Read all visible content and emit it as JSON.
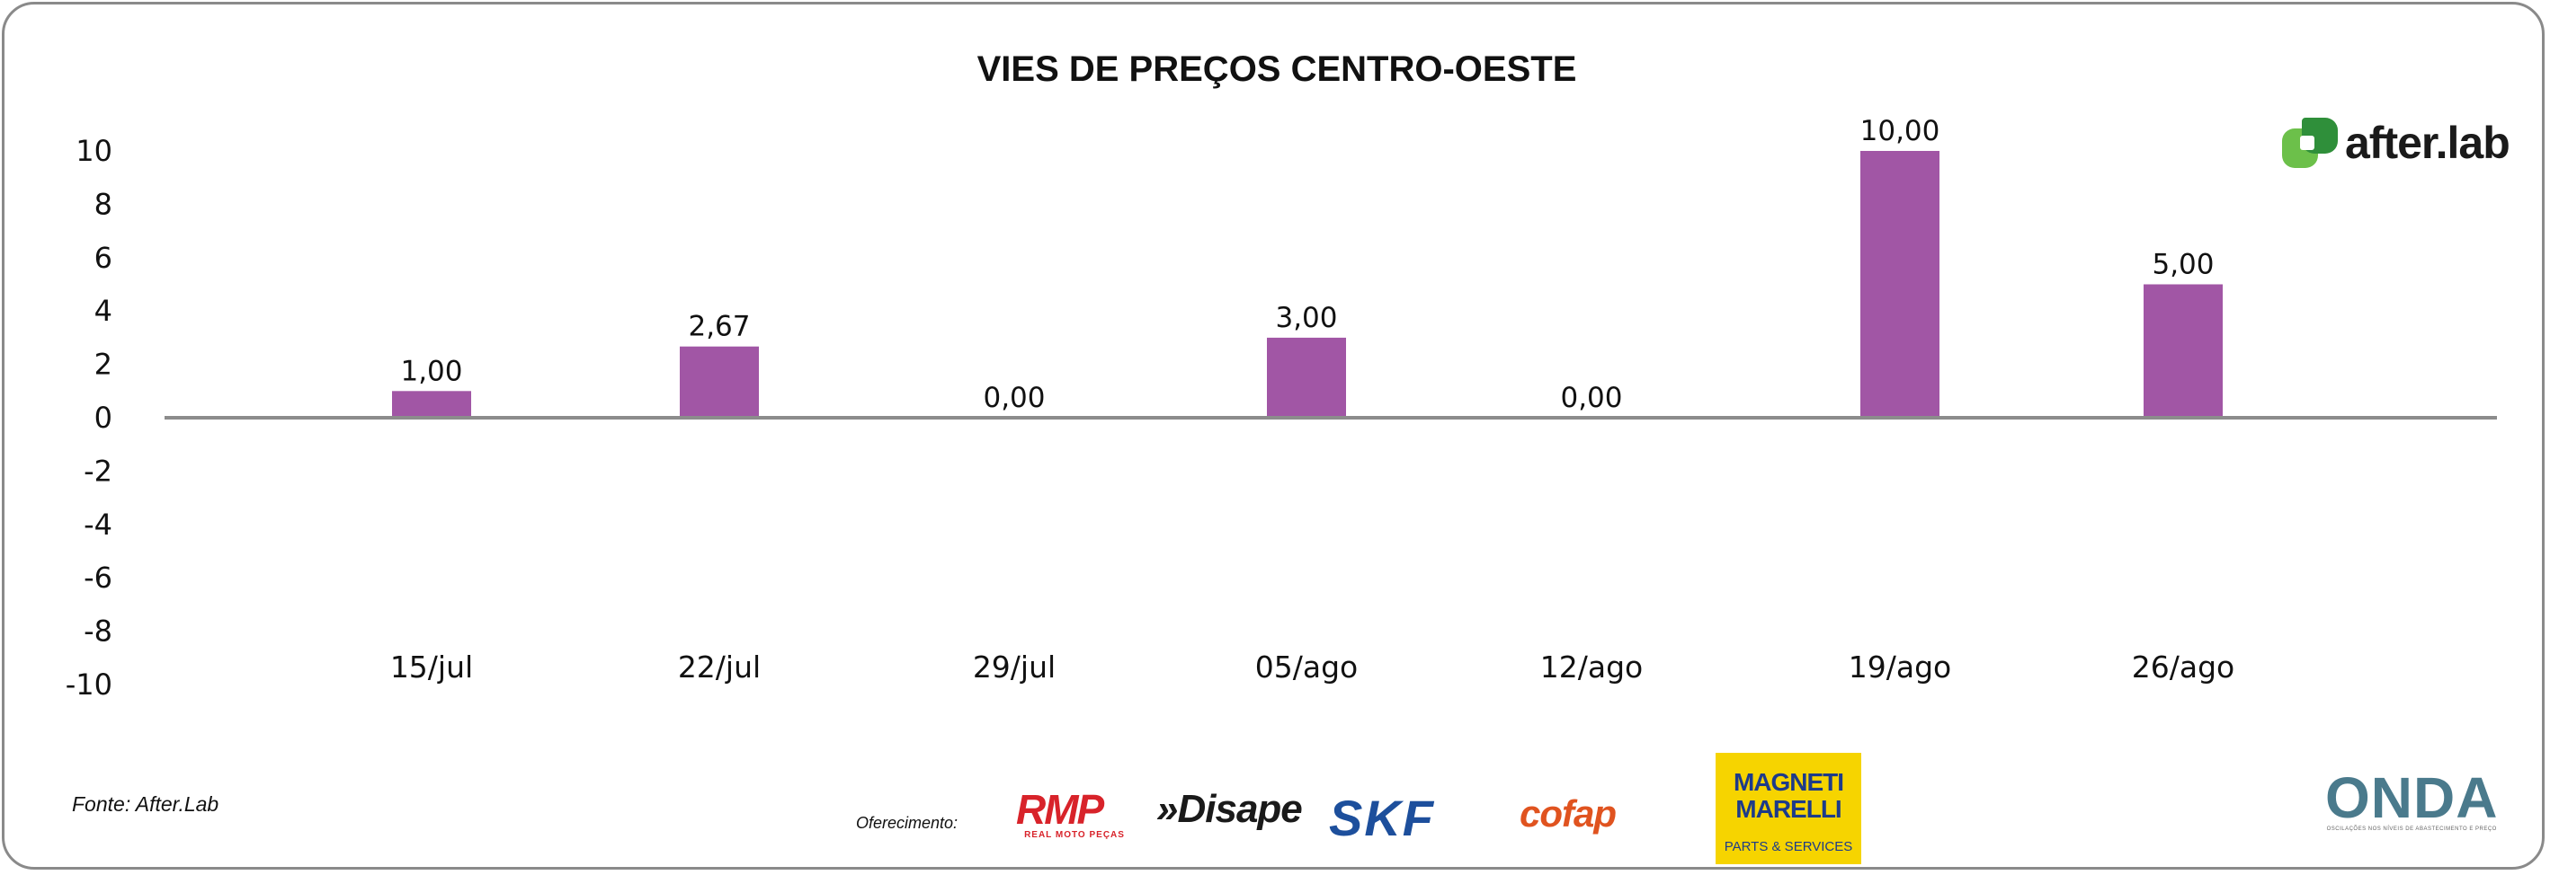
{
  "chart_data": {
    "type": "bar",
    "title": "VIES DE PREÇOS CENTRO-OESTE",
    "categories": [
      "15/jul",
      "22/jul",
      "29/jul",
      "05/ago",
      "12/ago",
      "19/ago",
      "26/ago"
    ],
    "values": [
      1.0,
      2.67,
      0.0,
      3.0,
      0.0,
      10.0,
      5.0
    ],
    "data_labels": [
      "1,00",
      "2,67",
      "0,00",
      "3,00",
      "0,00",
      "10,00",
      "5,00"
    ],
    "y_ticks": [
      "10",
      "8",
      "6",
      "4",
      "2",
      "0",
      "-2",
      "-4",
      "-6",
      "-8",
      "-10"
    ],
    "ylim": [
      -10,
      10
    ],
    "bar_color": "#a156a5",
    "axis_color": "#8c8c8c",
    "grid": false,
    "legend": "none"
  },
  "footer": {
    "source": "Fonte: After.Lab",
    "sponsor_label": "Oferecimento:"
  },
  "logos": {
    "afterlab": "after.lab",
    "rmp": "RMP",
    "rmp_sub": "REAL MOTO PEÇAS",
    "disape": "»Disape",
    "skf": "SKF",
    "cofap": "cofap",
    "marelli_1": "MAGNETI",
    "marelli_2": "MARELLI",
    "marelli_3": "PARTS & SERVICES",
    "onda": "ONDA",
    "onda_sub": "OSCILAÇÕES NOS NÍVEIS DE ABASTECIMENTO E PREÇO"
  }
}
